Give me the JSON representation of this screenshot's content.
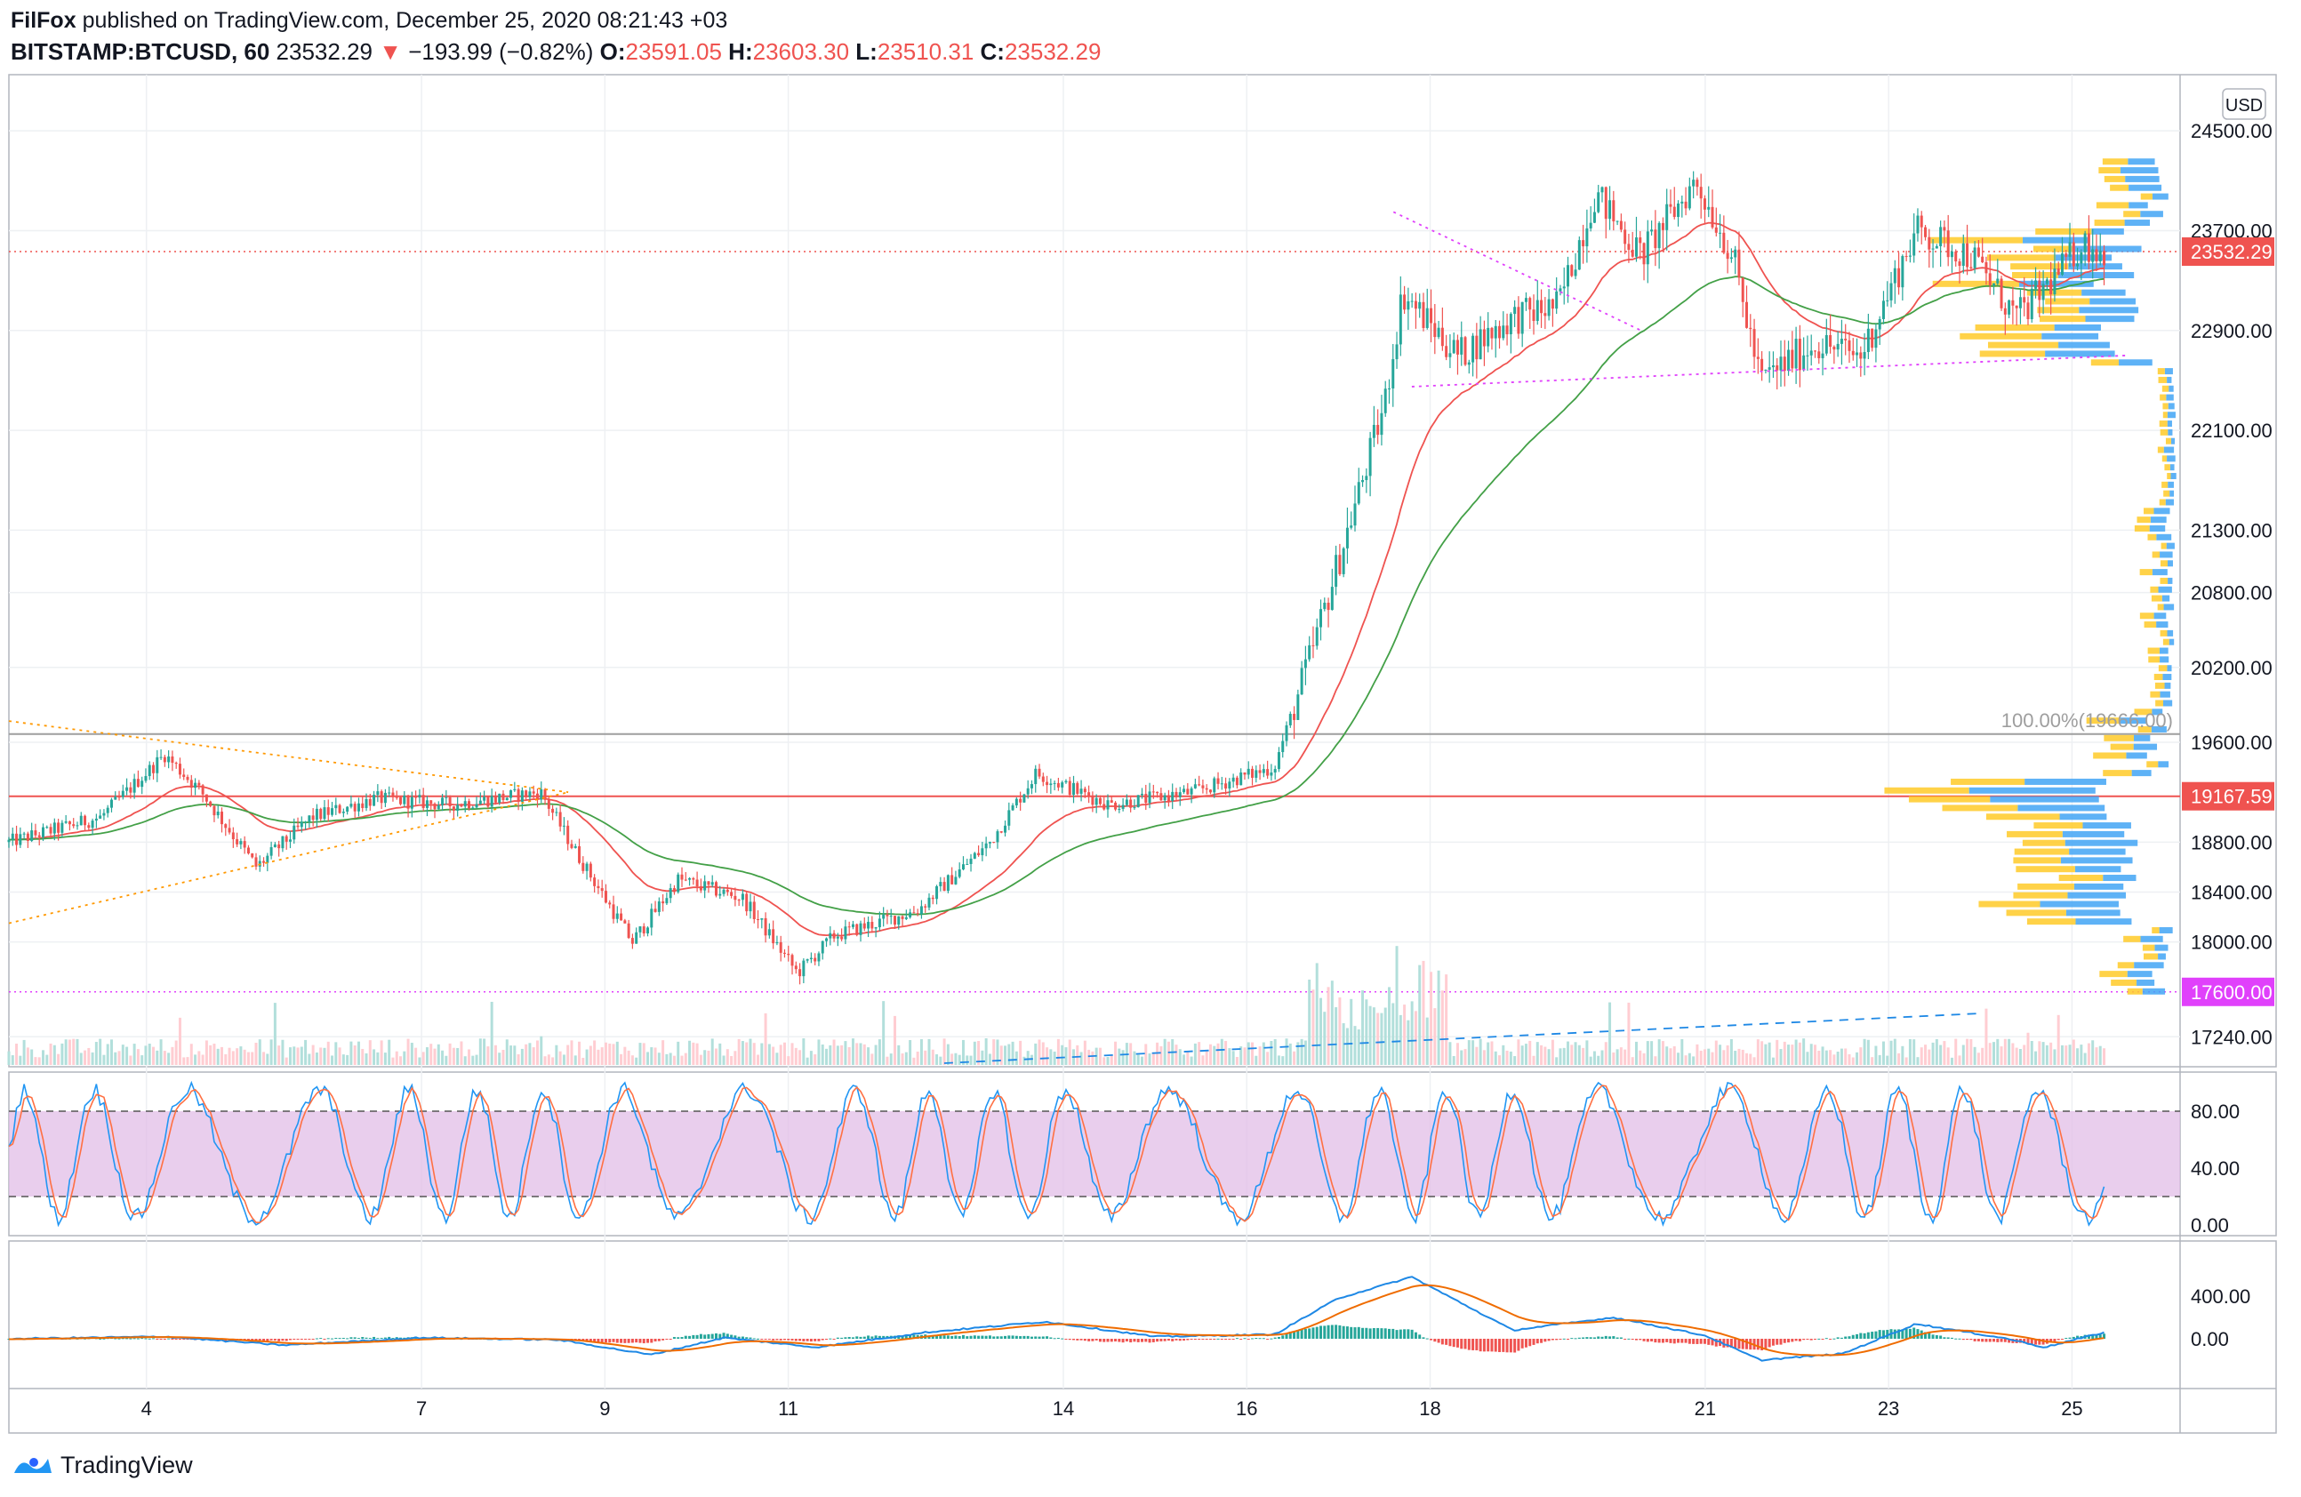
{
  "header": {
    "publisher": "FilFox",
    "published_text": "published on TradingView.com, December 25, 2020 08:21:43 +03",
    "symbol": "BITSTAMP:BTCUSD, 60",
    "last": "23532.29",
    "change_arrow": "▼",
    "change": "−193.99 (−0.82%)",
    "o_label": "O:",
    "o": "23591.05",
    "h_label": "H:",
    "h": "23603.30",
    "l_label": "L:",
    "l": "23510.31",
    "c_label": "C:",
    "c": "23532.29"
  },
  "footer": {
    "brand": "TradingView",
    "logo_icon": "tradingview-logo-icon"
  },
  "colors": {
    "up": "#26a69a",
    "down": "#ef5350",
    "ma_red": "#ef5350",
    "ma_green": "#43a047",
    "magenta": "#e040fb",
    "orange_dotted": "#ff9800",
    "stoch_band": "#e1bee7",
    "stoch_k": "#2196f3",
    "stoch_d": "#ff7043",
    "macd": "#1e88e5",
    "signal": "#ef6c00",
    "volume_profile_up": "#ffca28",
    "volume_profile_down": "#42a5f5"
  },
  "chart_data": {
    "type": "candlestick",
    "symbol": "BITSTAMP:BTCUSD",
    "interval": "60",
    "currency_badge": "USD",
    "price_ticks": [
      "24500.00",
      "23700.00",
      "22900.00",
      "22100.00",
      "21300.00",
      "20800.00",
      "20200.00",
      "19600.00",
      "18800.00",
      "18400.00",
      "18000.00",
      "17240.00"
    ],
    "price_tick_values": [
      24500,
      23700,
      22900,
      22100,
      21300,
      20800,
      20200,
      19600,
      18800,
      18400,
      18000,
      17240
    ],
    "price_range": [
      17000,
      24950
    ],
    "x_ticks": [
      "4",
      "7",
      "9",
      "11",
      "14",
      "16",
      "18",
      "21",
      "23",
      "25"
    ],
    "x_tick_days": [
      4,
      7,
      9,
      11,
      14,
      16,
      18,
      21,
      23,
      25
    ],
    "day_range": [
      2.5,
      25.5
    ],
    "price_labels": [
      {
        "text": "23532.29",
        "value": 23532.29,
        "color": "#ef5350"
      },
      {
        "text": "19167.59",
        "value": 19167.59,
        "color": "#ef5350"
      },
      {
        "text": "17600.00",
        "value": 17600,
        "color": "#e040fb"
      }
    ],
    "fib_label": "100.00%(19666.00)",
    "fib_value": 19666,
    "levels": [
      {
        "value": 23532.29,
        "style": "dotted",
        "color": "#ef5350"
      },
      {
        "value": 19167.59,
        "style": "solid",
        "color": "#ef5350"
      },
      {
        "value": 17600,
        "style": "dotted",
        "color": "#e040fb"
      },
      {
        "value": 19666,
        "style": "solid",
        "color": "#9e9e9e"
      }
    ],
    "anchors": [
      {
        "day": 2.5,
        "price": 18800
      },
      {
        "day": 3.5,
        "price": 19000
      },
      {
        "day": 4.2,
        "price": 19500
      },
      {
        "day": 4.6,
        "price": 19200
      },
      {
        "day": 5.2,
        "price": 18600
      },
      {
        "day": 5.8,
        "price": 19000
      },
      {
        "day": 6.5,
        "price": 19150
      },
      {
        "day": 7.3,
        "price": 19100
      },
      {
        "day": 8.3,
        "price": 19200
      },
      {
        "day": 8.7,
        "price": 18700
      },
      {
        "day": 9.3,
        "price": 18000
      },
      {
        "day": 9.8,
        "price": 18500
      },
      {
        "day": 10.5,
        "price": 18350
      },
      {
        "day": 11.1,
        "price": 17750
      },
      {
        "day": 11.5,
        "price": 18050
      },
      {
        "day": 12.4,
        "price": 18250
      },
      {
        "day": 13.2,
        "price": 18800
      },
      {
        "day": 13.7,
        "price": 19350
      },
      {
        "day": 14.5,
        "price": 19100
      },
      {
        "day": 15.4,
        "price": 19200
      },
      {
        "day": 16.3,
        "price": 19400
      },
      {
        "day": 16.7,
        "price": 20300
      },
      {
        "day": 17.1,
        "price": 21300
      },
      {
        "day": 17.5,
        "price": 22300
      },
      {
        "day": 17.7,
        "price": 23200
      },
      {
        "day": 18.3,
        "price": 22700
      },
      {
        "day": 18.9,
        "price": 23000
      },
      {
        "day": 19.4,
        "price": 23100
      },
      {
        "day": 19.8,
        "price": 24000
      },
      {
        "day": 20.3,
        "price": 23500
      },
      {
        "day": 20.9,
        "price": 24100
      },
      {
        "day": 21.3,
        "price": 23500
      },
      {
        "day": 21.6,
        "price": 22500
      },
      {
        "day": 22.2,
        "price": 22800
      },
      {
        "day": 22.7,
        "price": 22700
      },
      {
        "day": 23.3,
        "price": 23700
      },
      {
        "day": 23.9,
        "price": 23500
      },
      {
        "day": 24.4,
        "price": 23000
      },
      {
        "day": 24.9,
        "price": 23400
      },
      {
        "day": 25.1,
        "price": 23600
      },
      {
        "day": 25.35,
        "price": 23532
      }
    ],
    "trendlines": [
      {
        "from": {
          "day": 17.6,
          "price": 23850
        },
        "to": {
          "day": 20.3,
          "price": 22900
        },
        "color": "#e040fb",
        "style": "dotted"
      },
      {
        "from": {
          "day": 17.8,
          "price": 22450
        },
        "to": {
          "day": 25.6,
          "price": 22700
        },
        "color": "#e040fb",
        "style": "dotted"
      },
      {
        "from": {
          "day": 2.5,
          "price": 19770
        },
        "to": {
          "day": 8.6,
          "price": 19200
        },
        "color": "#ff9800",
        "style": "dotted"
      },
      {
        "from": {
          "day": 2.5,
          "price": 18150
        },
        "to": {
          "day": 8.6,
          "price": 19200
        },
        "color": "#ff9800",
        "style": "dotted"
      }
    ],
    "stochastic": {
      "ticks": [
        "80.00",
        "40.00",
        "0.00"
      ],
      "tick_values": [
        80,
        40,
        0
      ],
      "band": [
        20,
        80
      ]
    },
    "macd": {
      "ticks": [
        "400.00",
        "0.00"
      ],
      "tick_values": [
        400,
        0
      ],
      "anchors": [
        {
          "day": 2.5,
          "v": 0
        },
        {
          "day": 4.2,
          "v": 20
        },
        {
          "day": 5.5,
          "v": -60
        },
        {
          "day": 7.0,
          "v": 10
        },
        {
          "day": 8.5,
          "v": -10
        },
        {
          "day": 9.5,
          "v": -150
        },
        {
          "day": 10.3,
          "v": 10
        },
        {
          "day": 11.3,
          "v": -80
        },
        {
          "day": 12.5,
          "v": 60
        },
        {
          "day": 13.8,
          "v": 160
        },
        {
          "day": 15.0,
          "v": 20
        },
        {
          "day": 16.3,
          "v": 40
        },
        {
          "day": 17.0,
          "v": 380
        },
        {
          "day": 17.8,
          "v": 580
        },
        {
          "day": 18.9,
          "v": 80
        },
        {
          "day": 20.0,
          "v": 200
        },
        {
          "day": 21.0,
          "v": 30
        },
        {
          "day": 21.6,
          "v": -200
        },
        {
          "day": 22.5,
          "v": -140
        },
        {
          "day": 23.3,
          "v": 140
        },
        {
          "day": 24.3,
          "v": 0
        },
        {
          "day": 24.7,
          "v": -80
        },
        {
          "day": 25.35,
          "v": 60
        }
      ]
    }
  }
}
